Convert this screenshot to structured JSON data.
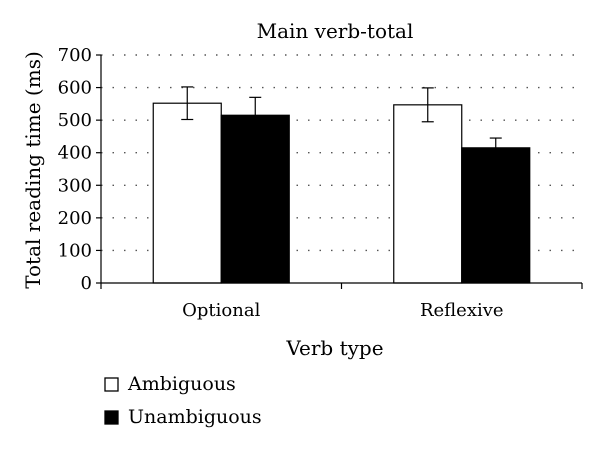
{
  "chart_data": {
    "type": "bar",
    "title": "Main verb-total",
    "xlabel": "Verb type",
    "ylabel": "Total reading time (ms)",
    "ylim": [
      0,
      700
    ],
    "yticks": [
      0,
      100,
      200,
      300,
      400,
      500,
      600,
      700
    ],
    "grid": "horizontal dotted",
    "legend_position": "bottom-left",
    "categories": [
      "Optional",
      "Reflexive"
    ],
    "series": [
      {
        "name": "Ambiguous",
        "color": "#ffffff",
        "values": [
          552,
          547
        ],
        "errors": [
          50,
          52
        ]
      },
      {
        "name": "Unambiguous",
        "color": "#000000",
        "values": [
          515,
          415
        ],
        "errors": [
          55,
          30
        ]
      }
    ]
  }
}
